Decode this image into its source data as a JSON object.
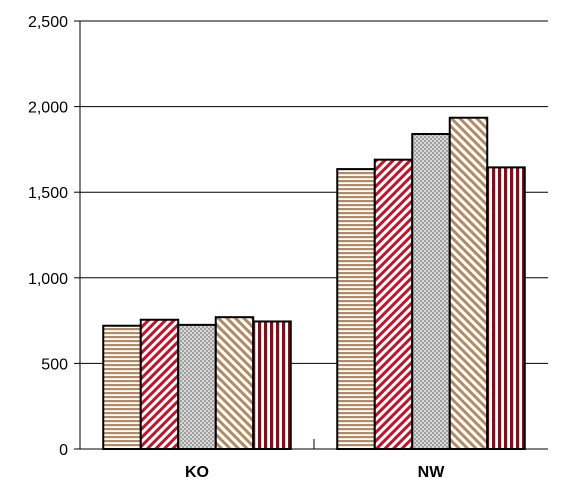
{
  "chart_data": {
    "type": "bar",
    "title": "",
    "xlabel": "",
    "ylabel": "",
    "categories": [
      "KO",
      "NW"
    ],
    "y_ticks": [
      "0",
      "500",
      "1,000",
      "1,500",
      "2,000",
      "2,500"
    ],
    "y_tick_values": [
      0,
      500,
      1000,
      1500,
      2000,
      2500
    ],
    "ylim": [
      0,
      2500
    ],
    "grid": true,
    "legend": "none",
    "series": [
      {
        "values": [
          720,
          1635
        ],
        "color": "#C9A27E",
        "pattern": "horizontal-stripes"
      },
      {
        "values": [
          755,
          1690
        ],
        "color": "#C0142A",
        "pattern": "diagonal-stripes"
      },
      {
        "values": [
          725,
          1840
        ],
        "color": "#AFAFAF",
        "pattern": "dots"
      },
      {
        "values": [
          770,
          1935
        ],
        "color": "#C9A27E",
        "pattern": "back-diagonal-stripes"
      },
      {
        "values": [
          745,
          1645
        ],
        "color": "#8B0A1A",
        "pattern": "vertical-stripes"
      }
    ]
  }
}
